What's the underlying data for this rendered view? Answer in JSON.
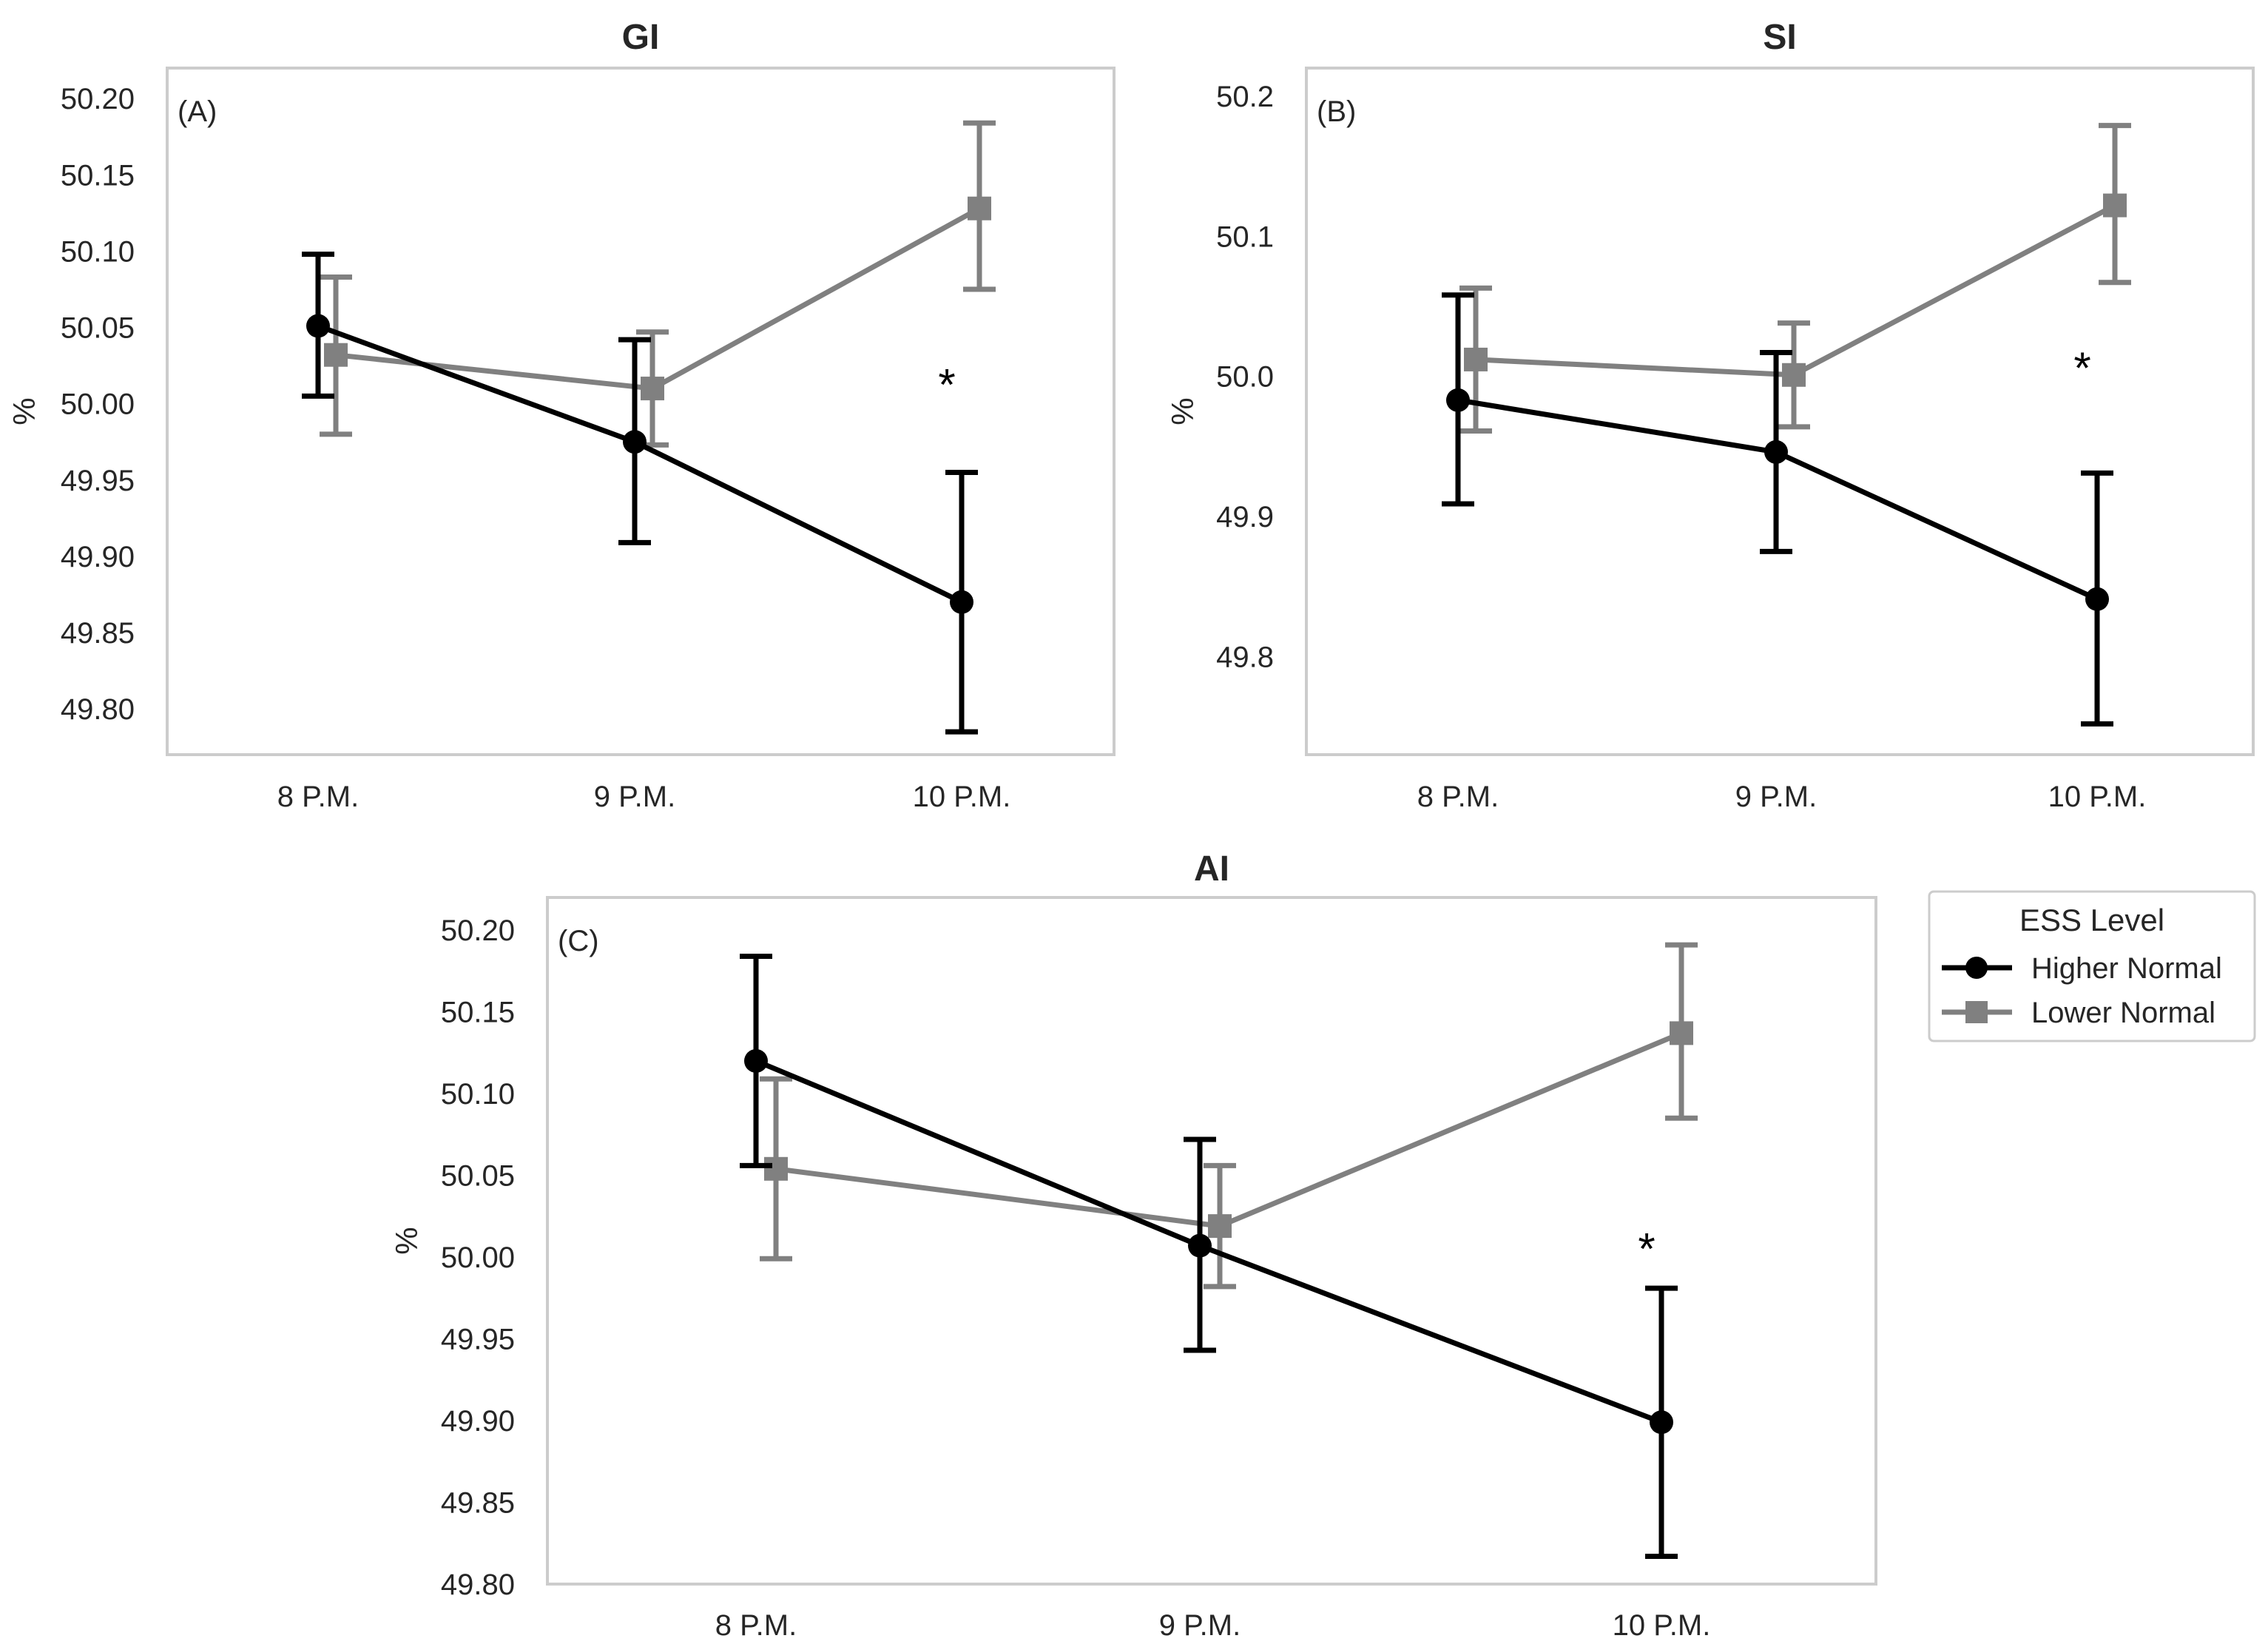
{
  "chart_data": [
    {
      "type": "line",
      "panel_label": "(A)",
      "title": "GI",
      "xlabel": "",
      "ylabel": "%",
      "categories": [
        "8 P.M.",
        "9 P.M.",
        "10 P.M."
      ],
      "ylim": [
        49.77,
        50.22
      ],
      "yticks": [
        49.8,
        49.85,
        49.9,
        49.95,
        50.0,
        50.05,
        50.1,
        50.15,
        50.2
      ],
      "ytick_labels": [
        "49.80",
        "49.85",
        "49.90",
        "49.95",
        "50.00",
        "50.05",
        "50.10",
        "50.15",
        "50.20"
      ],
      "grid": false,
      "series": [
        {
          "name": "Higher Normal",
          "color": "#000000",
          "marker": "circle",
          "values": [
            50.051,
            49.975,
            49.87
          ],
          "err_low": [
            50.005,
            49.909,
            49.785
          ],
          "err_high": [
            50.098,
            50.042,
            49.955
          ]
        },
        {
          "name": "Lower Normal",
          "color": "#808080",
          "marker": "square",
          "values": [
            50.032,
            50.01,
            50.128
          ],
          "err_low": [
            49.98,
            49.973,
            50.075
          ],
          "err_high": [
            50.083,
            50.047,
            50.184
          ]
        }
      ],
      "annotations": [
        {
          "text": "*",
          "category": "10 P.M.",
          "y": 50.02
        }
      ]
    },
    {
      "type": "line",
      "panel_label": "(B)",
      "title": "SI",
      "xlabel": "",
      "ylabel": "%",
      "categories": [
        "8 P.M.",
        "9 P.M.",
        "10 P.M."
      ],
      "ylim": [
        49.73,
        50.22
      ],
      "yticks": [
        49.8,
        49.9,
        50.0,
        50.1,
        50.2
      ],
      "ytick_labels": [
        "49.8",
        "49.9",
        "50.0",
        "50.1",
        "50.2"
      ],
      "grid": false,
      "series": [
        {
          "name": "Higher Normal",
          "color": "#000000",
          "marker": "circle",
          "values": [
            49.983,
            49.946,
            49.841
          ],
          "err_low": [
            49.909,
            49.875,
            49.752
          ],
          "err_high": [
            50.058,
            50.017,
            49.931
          ]
        },
        {
          "name": "Lower Normal",
          "color": "#808080",
          "marker": "square",
          "values": [
            50.012,
            50.001,
            50.122
          ],
          "err_low": [
            49.961,
            49.964,
            50.067
          ],
          "err_high": [
            50.063,
            50.038,
            50.179
          ]
        }
      ],
      "annotations": [
        {
          "text": "*",
          "category": "10 P.M.",
          "y": 50.014
        }
      ]
    },
    {
      "type": "line",
      "panel_label": "(C)",
      "title": "AI",
      "xlabel": "",
      "ylabel": "%",
      "categories": [
        "8 P.M.",
        "9 P.M.",
        "10 P.M."
      ],
      "ylim": [
        49.8,
        50.22
      ],
      "yticks": [
        49.8,
        49.85,
        49.9,
        49.95,
        50.0,
        50.05,
        50.1,
        50.15,
        50.2
      ],
      "ytick_labels": [
        "49.80",
        "49.85",
        "49.90",
        "49.95",
        "50.00",
        "50.05",
        "50.10",
        "50.15",
        "50.20"
      ],
      "grid": false,
      "series": [
        {
          "name": "Higher Normal",
          "color": "#000000",
          "marker": "circle",
          "values": [
            50.12,
            50.007,
            49.899
          ],
          "err_low": [
            50.056,
            49.943,
            49.817
          ],
          "err_high": [
            50.184,
            50.072,
            49.981
          ]
        },
        {
          "name": "Lower Normal",
          "color": "#808080",
          "marker": "square",
          "values": [
            50.054,
            50.019,
            50.137
          ],
          "err_low": [
            49.999,
            49.982,
            50.085
          ],
          "err_high": [
            50.109,
            50.056,
            50.191
          ]
        }
      ],
      "annotations": [
        {
          "text": "*",
          "category": "10 P.M.",
          "y": 50.012
        }
      ],
      "legend": {
        "title": "ESS Level",
        "placement": "outside-right",
        "entries": [
          "Higher Normal",
          "Lower Normal"
        ]
      }
    }
  ]
}
